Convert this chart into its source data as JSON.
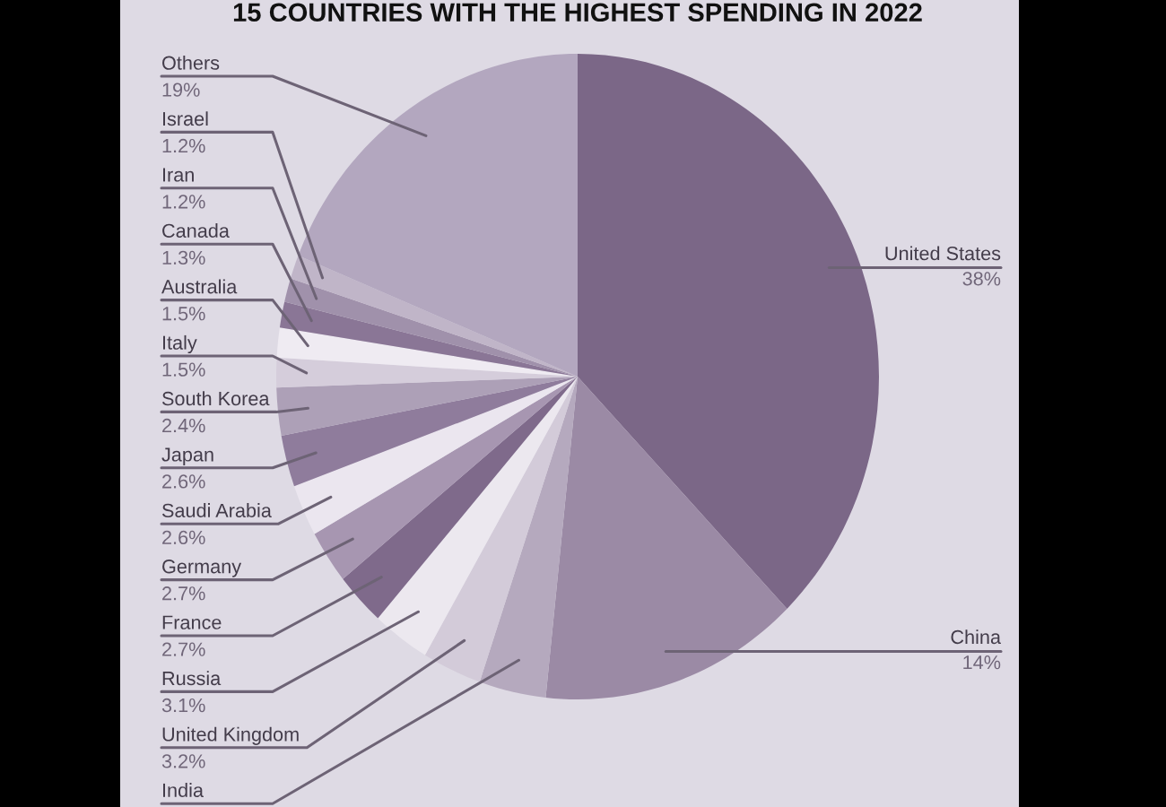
{
  "chart_data": {
    "type": "pie",
    "title": "15 COUNTRIES WITH THE HIGHEST SPENDING IN 2022",
    "categories": [
      "United States",
      "China",
      "India",
      "United Kingdom",
      "Russia",
      "France",
      "Germany",
      "Saudi Arabia",
      "Japan",
      "South Korea",
      "Italy",
      "Australia",
      "Canada",
      "Iran",
      "Israel",
      "Others"
    ],
    "values": [
      38,
      14,
      3.6,
      3.2,
      3.1,
      2.7,
      2.7,
      2.6,
      2.6,
      2.4,
      1.5,
      1.5,
      1.3,
      1.2,
      1.2,
      19
    ],
    "value_labels": [
      "38%",
      "14%",
      null,
      "3.2%",
      "3.1%",
      "2.7%",
      "2.7%",
      "2.6%",
      "2.6%",
      "2.4%",
      "1.5%",
      "1.5%",
      "1.3%",
      "1.2%",
      "1.2%",
      "19%"
    ],
    "colors": [
      "#7b6787",
      "#9b8aa5",
      "#b5a9be",
      "#d3cbd9",
      "#ece8ef",
      "#7f6a8b",
      "#a796b1",
      "#ebe6ef",
      "#8f7c9c",
      "#ada0b7",
      "#d5cddb",
      "#efebf2",
      "#8a7696",
      "#a091ab",
      "#c0b5c8",
      "#b3a7bf"
    ]
  }
}
